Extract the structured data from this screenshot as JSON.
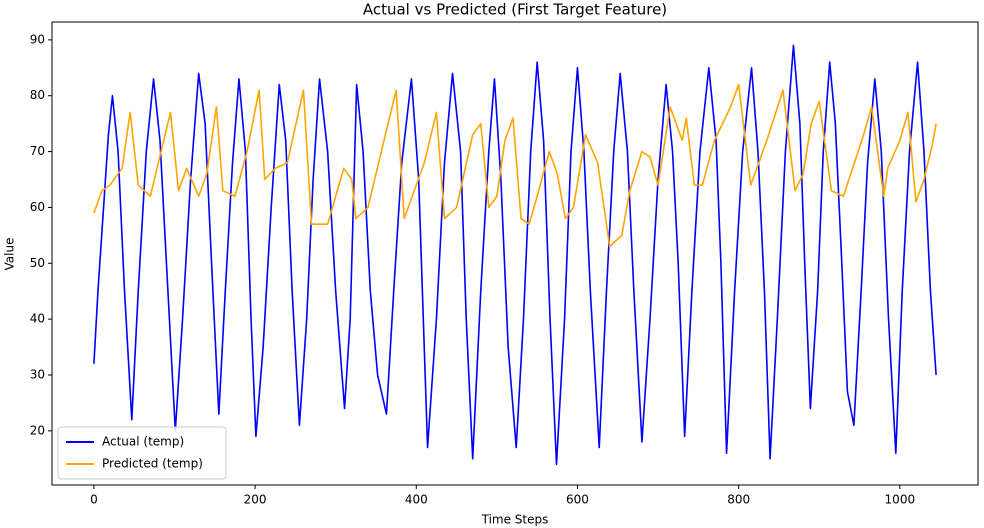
{
  "chart_data": {
    "type": "line",
    "title": "Actual vs Predicted (First Target Feature)",
    "x_label": "Time Steps",
    "y_label": "Value",
    "xlim": [
      -52,
      1097
    ],
    "ylim": [
      10.3,
      93.2
    ],
    "xticks": [
      0,
      200,
      400,
      600,
      800,
      1000
    ],
    "yticks": [
      20,
      30,
      40,
      50,
      60,
      70,
      80,
      90
    ],
    "legend": "lower left",
    "series": [
      {
        "name": "Actual (temp)",
        "color": "#0000ff",
        "x": [
          0,
          5,
          12,
          18,
          23,
          30,
          38,
          47,
          55,
          65,
          74,
          82,
          90,
          101,
          110,
          120,
          130,
          138,
          146,
          155,
          163,
          172,
          180,
          188,
          195,
          201,
          210,
          220,
          230,
          238,
          246,
          255,
          264,
          272,
          280,
          290,
          300,
          311,
          318,
          326,
          334,
          343,
          352,
          363,
          372,
          382,
          394,
          403,
          414,
          425,
          435,
          445,
          455,
          462,
          470,
          480,
          490,
          497,
          505,
          514,
          524,
          533,
          542,
          550,
          558,
          566,
          574,
          584,
          592,
          600,
          608,
          616,
          627,
          636,
          645,
          653,
          662,
          670,
          680,
          690,
          700,
          710,
          718,
          725,
          733,
          742,
          752,
          763,
          772,
          778,
          785,
          795,
          805,
          816,
          824,
          832,
          839,
          848,
          858,
          868,
          876,
          882,
          889,
          898,
          905,
          913,
          920,
          928,
          935,
          943,
          952,
          960,
          969,
          977,
          986,
          995,
          1003,
          1012,
          1022,
          1030,
          1038,
          1045
        ],
        "values": [
          32,
          45,
          60,
          73,
          80,
          70,
          45,
          22,
          45,
          70,
          83,
          72,
          50,
          20,
          40,
          65,
          84,
          75,
          50,
          23,
          45,
          68,
          83,
          70,
          40,
          19,
          35,
          60,
          82,
          72,
          45,
          21,
          40,
          65,
          83,
          70,
          45,
          24,
          40,
          82,
          70,
          45,
          30,
          23,
          45,
          68,
          83,
          65,
          17,
          40,
          68,
          84,
          70,
          40,
          15,
          45,
          70,
          83,
          65,
          35,
          17,
          40,
          70,
          86,
          72,
          40,
          14,
          40,
          70,
          85,
          70,
          45,
          17,
          45,
          70,
          84,
          70,
          45,
          18,
          40,
          65,
          82,
          70,
          50,
          19,
          45,
          70,
          85,
          72,
          50,
          16,
          45,
          70,
          85,
          70,
          45,
          15,
          40,
          70,
          89,
          75,
          50,
          24,
          45,
          70,
          86,
          75,
          50,
          27,
          21,
          45,
          68,
          83,
          70,
          40,
          16,
          45,
          70,
          86,
          70,
          45,
          30
        ]
      },
      {
        "name": "Predicted (temp)",
        "color": "#ffa500",
        "x": [
          0,
          10,
          20,
          35,
          45,
          55,
          70,
          80,
          95,
          105,
          115,
          130,
          140,
          152,
          160,
          175,
          190,
          205,
          212,
          225,
          240,
          260,
          270,
          290,
          300,
          310,
          320,
          325,
          340,
          360,
          375,
          385,
          395,
          410,
          425,
          435,
          450,
          470,
          480,
          490,
          500,
          510,
          520,
          530,
          540,
          550,
          565,
          575,
          585,
          595,
          610,
          625,
          640,
          655,
          665,
          680,
          690,
          700,
          715,
          730,
          735,
          745,
          755,
          770,
          790,
          800,
          815,
          835,
          855,
          870,
          880,
          890,
          900,
          915,
          930,
          955,
          965,
          980,
          985,
          1000,
          1010,
          1020,
          1030,
          1040,
          1045
        ],
        "values": [
          59,
          63,
          64,
          67,
          77,
          64,
          62,
          68,
          77,
          63,
          67,
          62,
          66,
          78,
          63,
          62,
          70,
          81,
          65,
          67,
          68,
          81,
          57,
          57,
          62,
          67,
          65,
          58,
          60,
          72,
          81,
          58,
          62,
          68,
          77,
          58,
          60,
          73,
          75,
          60,
          62,
          72,
          76,
          58,
          57,
          62,
          70,
          66,
          58,
          60,
          73,
          68,
          53,
          55,
          63,
          70,
          69,
          64,
          78,
          72,
          76,
          64,
          64,
          72,
          78,
          82,
          64,
          72,
          81,
          63,
          66,
          75,
          79,
          63,
          62,
          73,
          78,
          62,
          67,
          72,
          77,
          61,
          65,
          71,
          75
        ]
      }
    ]
  }
}
